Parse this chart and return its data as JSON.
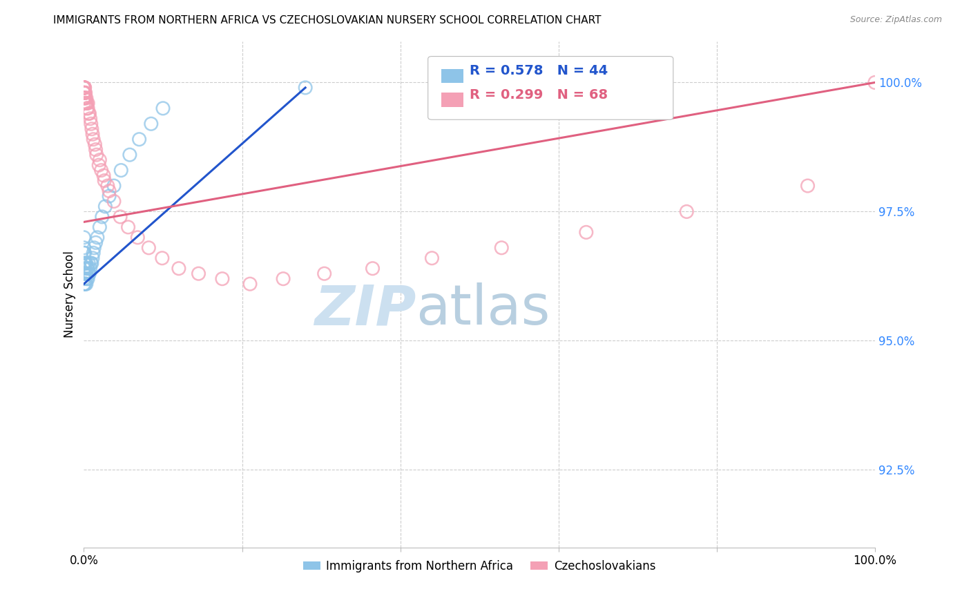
{
  "title": "IMMIGRANTS FROM NORTHERN AFRICA VS CZECHOSLOVAKIAN NURSERY SCHOOL CORRELATION CHART",
  "source": "Source: ZipAtlas.com",
  "ylabel": "Nursery School",
  "legend_label1": "Immigrants from Northern Africa",
  "legend_label2": "Czechoslovakians",
  "R1": 0.578,
  "N1": 44,
  "R2": 0.299,
  "N2": 68,
  "color1": "#8ec4e8",
  "color2": "#f4a0b5",
  "line_color1": "#2255cc",
  "line_color2": "#e06080",
  "xlim": [
    0.0,
    1.0
  ],
  "ylim": [
    0.91,
    1.008
  ],
  "yticks": [
    0.925,
    0.95,
    0.975,
    1.0
  ],
  "ytick_labels": [
    "92.5%",
    "95.0%",
    "97.5%",
    "100.0%"
  ],
  "blue_x": [
    0.0,
    0.0,
    0.0,
    0.0,
    0.0,
    0.0,
    0.0,
    0.0,
    0.001,
    0.001,
    0.001,
    0.001,
    0.002,
    0.002,
    0.002,
    0.003,
    0.003,
    0.003,
    0.004,
    0.004,
    0.005,
    0.005,
    0.006,
    0.006,
    0.007,
    0.008,
    0.009,
    0.01,
    0.011,
    0.012,
    0.013,
    0.015,
    0.017,
    0.02,
    0.023,
    0.027,
    0.032,
    0.038,
    0.047,
    0.058,
    0.07,
    0.085,
    0.1,
    0.28
  ],
  "blue_y": [
    0.961,
    0.962,
    0.963,
    0.964,
    0.965,
    0.967,
    0.968,
    0.97,
    0.961,
    0.963,
    0.965,
    0.967,
    0.961,
    0.963,
    0.965,
    0.961,
    0.963,
    0.965,
    0.962,
    0.964,
    0.962,
    0.964,
    0.963,
    0.965,
    0.963,
    0.964,
    0.965,
    0.965,
    0.966,
    0.967,
    0.968,
    0.969,
    0.97,
    0.972,
    0.974,
    0.976,
    0.978,
    0.98,
    0.983,
    0.986,
    0.989,
    0.992,
    0.995,
    0.999
  ],
  "pink_x": [
    0.0,
    0.0,
    0.0,
    0.0,
    0.0,
    0.0,
    0.0,
    0.0,
    0.0,
    0.0,
    0.0,
    0.0,
    0.0,
    0.0,
    0.0,
    0.0,
    0.0,
    0.0,
    0.001,
    0.001,
    0.001,
    0.001,
    0.001,
    0.002,
    0.002,
    0.002,
    0.003,
    0.003,
    0.004,
    0.004,
    0.005,
    0.005,
    0.006,
    0.007,
    0.008,
    0.009,
    0.01,
    0.011,
    0.012,
    0.014,
    0.016,
    0.019,
    0.022,
    0.026,
    0.032,
    0.038,
    0.046,
    0.056,
    0.068,
    0.082,
    0.099,
    0.12,
    0.145,
    0.175,
    0.21,
    0.252,
    0.304,
    0.365,
    0.44,
    0.528,
    0.635,
    0.762,
    0.915,
    1.0,
    0.015,
    0.02,
    0.025,
    0.03
  ],
  "pink_y": [
    0.999,
    0.999,
    0.999,
    0.999,
    0.999,
    0.999,
    0.999,
    0.999,
    0.999,
    0.999,
    0.999,
    0.999,
    0.998,
    0.998,
    0.998,
    0.997,
    0.997,
    0.996,
    0.999,
    0.999,
    0.998,
    0.998,
    0.997,
    0.998,
    0.997,
    0.996,
    0.997,
    0.996,
    0.996,
    0.995,
    0.996,
    0.995,
    0.994,
    0.994,
    0.993,
    0.992,
    0.991,
    0.99,
    0.989,
    0.988,
    0.986,
    0.984,
    0.983,
    0.981,
    0.979,
    0.977,
    0.974,
    0.972,
    0.97,
    0.968,
    0.966,
    0.964,
    0.963,
    0.962,
    0.961,
    0.962,
    0.963,
    0.964,
    0.966,
    0.968,
    0.971,
    0.975,
    0.98,
    1.0,
    0.987,
    0.985,
    0.982,
    0.98
  ],
  "blue_line_x": [
    0.0,
    0.28
  ],
  "blue_line_y": [
    0.961,
    0.999
  ],
  "pink_line_x": [
    0.0,
    1.0
  ],
  "pink_line_y": [
    0.973,
    1.0
  ]
}
